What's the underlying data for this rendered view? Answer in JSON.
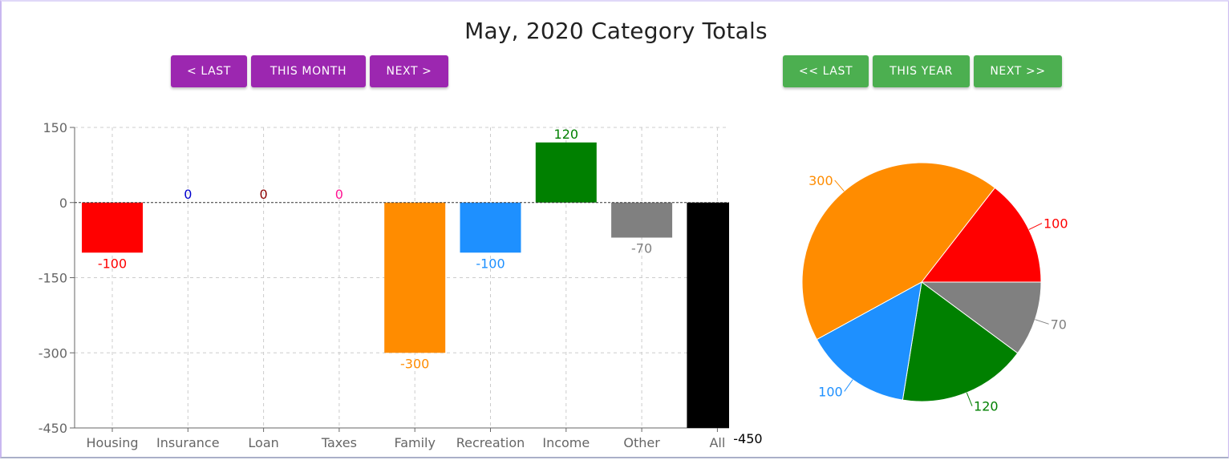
{
  "title": "May, 2020 Category Totals",
  "month_nav": {
    "last": "< LAST",
    "this": "THIS MONTH",
    "next": "NEXT >"
  },
  "year_nav": {
    "last": "<< LAST",
    "this": "THIS YEAR",
    "next": "NEXT >>"
  },
  "colors": {
    "purple": "#9c27b0",
    "green": "#4caf50"
  },
  "chart_data": [
    {
      "type": "bar",
      "categories": [
        "Housing",
        "Insurance",
        "Loan",
        "Taxes",
        "Family",
        "Recreation",
        "Income",
        "Other",
        "All"
      ],
      "values": [
        -100,
        0,
        0,
        0,
        -300,
        -100,
        120,
        -70,
        -450
      ],
      "colors": [
        "#ff0000",
        "#0000cd",
        "#8b0000",
        "#ff1493",
        "#ff8c00",
        "#1e90ff",
        "#008000",
        "#808080",
        "#000000"
      ],
      "data_labels": [
        "-100",
        "0",
        "0",
        "0",
        "-300",
        "-100",
        "120",
        "-70",
        "-450"
      ],
      "yticks": [
        "150",
        "0",
        "-150",
        "-300",
        "-450"
      ],
      "ylim": [
        -450,
        150
      ],
      "grid": true
    },
    {
      "type": "pie",
      "slices": [
        {
          "value": 100,
          "color": "#ff0000",
          "label": "100"
        },
        {
          "value": 70,
          "color": "#808080",
          "label": "70"
        },
        {
          "value": 120,
          "color": "#008000",
          "label": "120"
        },
        {
          "value": 100,
          "color": "#1e90ff",
          "label": "100"
        },
        {
          "value": 300,
          "color": "#ff8c00",
          "label": "300"
        }
      ]
    }
  ]
}
